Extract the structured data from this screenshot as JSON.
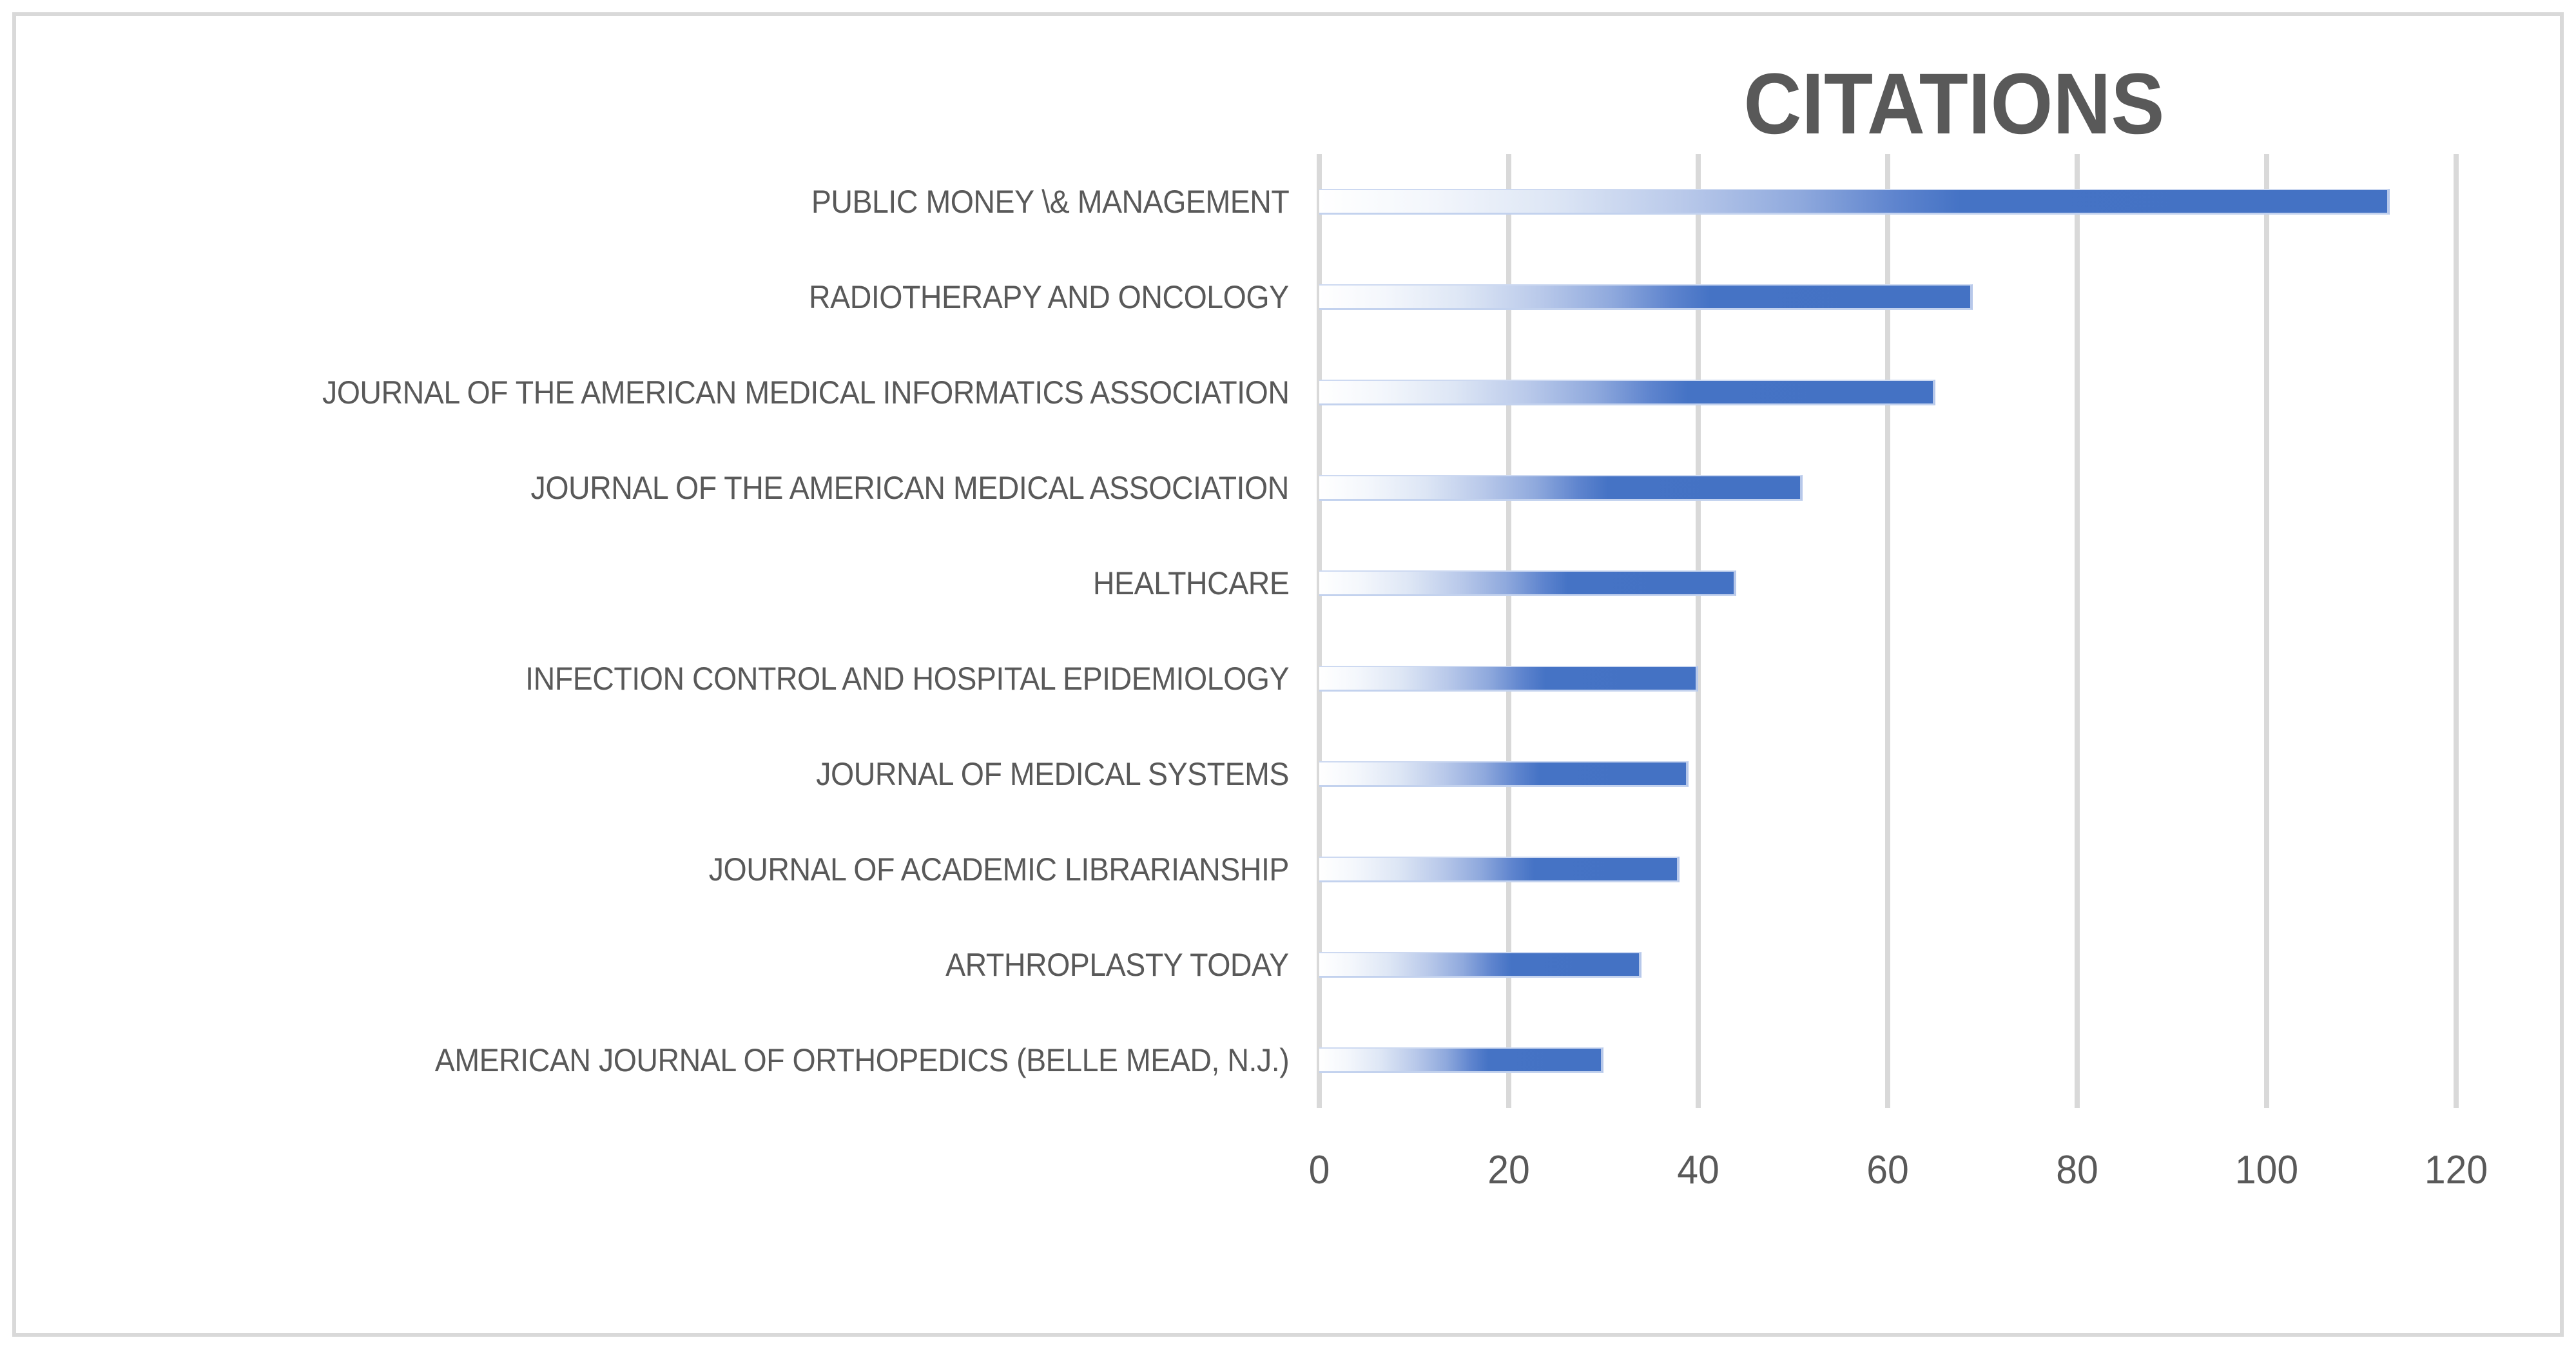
{
  "chart_data": {
    "type": "bar",
    "orientation": "horizontal",
    "title": "CITATIONS",
    "categories": [
      "PUBLIC MONEY \\& MANAGEMENT",
      "RADIOTHERAPY AND ONCOLOGY",
      "JOURNAL OF THE AMERICAN MEDICAL INFORMATICS ASSOCIATION",
      "JOURNAL OF THE AMERICAN MEDICAL ASSOCIATION",
      "HEALTHCARE",
      "INFECTION CONTROL AND HOSPITAL EPIDEMIOLOGY",
      "JOURNAL OF MEDICAL SYSTEMS",
      "JOURNAL OF ACADEMIC LIBRARIANSHIP",
      "ARTHROPLASTY TODAY",
      "AMERICAN JOURNAL OF ORTHOPEDICS (BELLE MEAD, N.J.)"
    ],
    "values": [
      113,
      69,
      65,
      51,
      44,
      40,
      39,
      38,
      34,
      30
    ],
    "xlabel": "",
    "ylabel": "",
    "xlim": [
      0,
      120
    ],
    "x_ticks": [
      0,
      20,
      40,
      60,
      80,
      100,
      120
    ],
    "grid": "vertical-major-gridlines",
    "legend": "none",
    "data_labels": "none",
    "colors": {
      "bar_solid": "#4472C4",
      "bar_gradient_start": "#FFFFFF",
      "bar_halo": "#B7C8EA",
      "gridline": "#D9D9D9",
      "frame_border": "#D9D9D9",
      "text": "#595959",
      "background": "#FFFFFF"
    }
  }
}
